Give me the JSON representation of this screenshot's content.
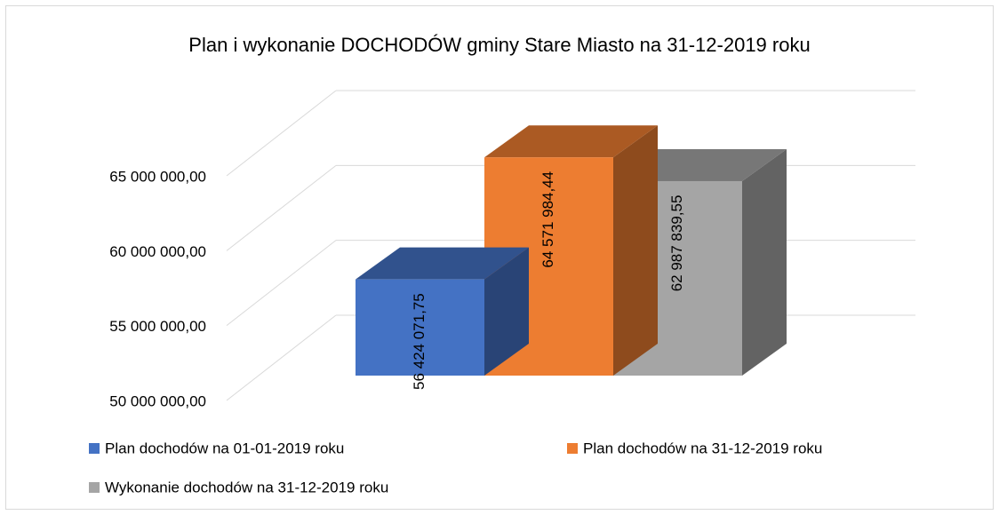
{
  "chart_data": {
    "type": "bar3d",
    "title": "Plan i wykonanie DOCHODÓW gminy Stare Miasto na 31-12-2019 roku",
    "categories": [
      null
    ],
    "series": [
      {
        "name": "Plan dochodów na 01-01-2019 roku",
        "color": "#4472c4",
        "values": [
          56424071.75
        ],
        "value_labels": [
          "56 424 071,75"
        ]
      },
      {
        "name": "Plan dochodów na 31-12-2019 roku",
        "color": "#ed7d31",
        "values": [
          64571984.44
        ],
        "value_labels": [
          "64 571 984,44"
        ]
      },
      {
        "name": "Wykonanie dochodów na 31-12-2019 roku",
        "color": "#a5a5a5",
        "values": [
          62987839.55
        ],
        "value_labels": [
          "62 987 839,55"
        ]
      }
    ],
    "ylim": [
      50000000,
      65000000
    ],
    "yticks": [
      {
        "value": 50000000,
        "label": "50 000 000,00"
      },
      {
        "value": 55000000,
        "label": "55 000 000,00"
      },
      {
        "value": 60000000,
        "label": "60 000 000,00"
      },
      {
        "value": 65000000,
        "label": "65 000 000,00"
      }
    ],
    "grid": true,
    "legend": "bottom"
  }
}
